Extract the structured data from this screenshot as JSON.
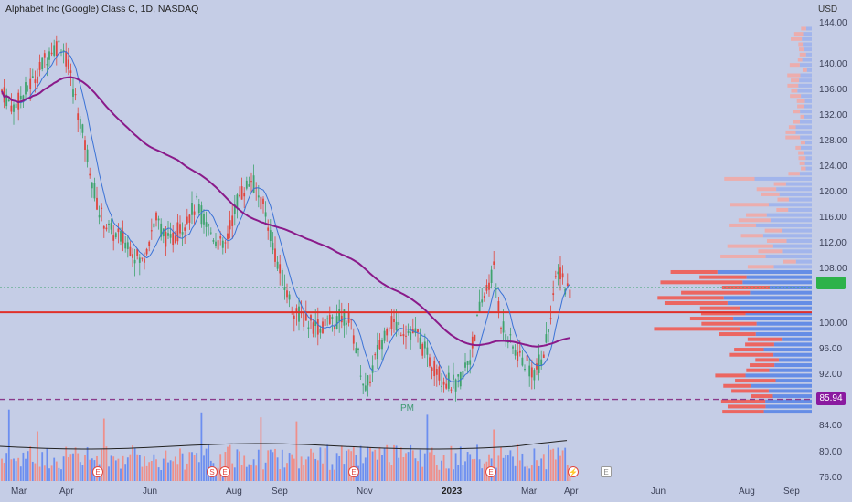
{
  "header": {
    "title": "Alphabet Inc (Google) Class C, 1D, NASDAQ",
    "currency": "USD"
  },
  "price_axis": {
    "labels": [
      "144.00",
      "140.00",
      "136.00",
      "132.00",
      "128.00",
      "124.00",
      "120.00",
      "116.00",
      "112.00",
      "108.00",
      "100.00",
      "96.00",
      "92.00",
      "88.00",
      "84.00",
      "80.00",
      "76.00"
    ],
    "current_price_tag": "",
    "line_price_tag": "85.94"
  },
  "time_axis": {
    "labels": [
      "Mar",
      "Apr",
      "Jun",
      "Aug",
      "Sep",
      "Nov",
      "2023",
      "Mar",
      "Apr",
      "Jun",
      "Aug",
      "Sep"
    ]
  },
  "annotations": {
    "pm_label": "PM"
  },
  "events": [
    "E",
    "E",
    "S",
    "E",
    "E",
    "E",
    "E"
  ],
  "colors": {
    "up": "#3fa36e",
    "down": "#e0453d",
    "ma_short": "#3a72d6",
    "ma_long": "#8a1a8a",
    "support_line": "#e0302a",
    "dashed_line": "#8a3a8a",
    "background": "#c5cde6"
  },
  "chart_data": {
    "type": "line",
    "title": "Alphabet Inc (Google) Class C, 1D, NASDAQ",
    "ylabel": "USD",
    "ylim": [
      74,
      146
    ],
    "x": [
      "Mar",
      "Apr",
      "Jun",
      "Aug",
      "Sep",
      "Nov",
      "2023",
      "Mar",
      "Apr"
    ],
    "series": [
      {
        "values": [
          136,
          140,
          110,
          118,
          120,
          92,
          88,
          104,
          103
        ]
      }
    ],
    "horizontal_lines": [
      99.5,
      85.94
    ]
  }
}
